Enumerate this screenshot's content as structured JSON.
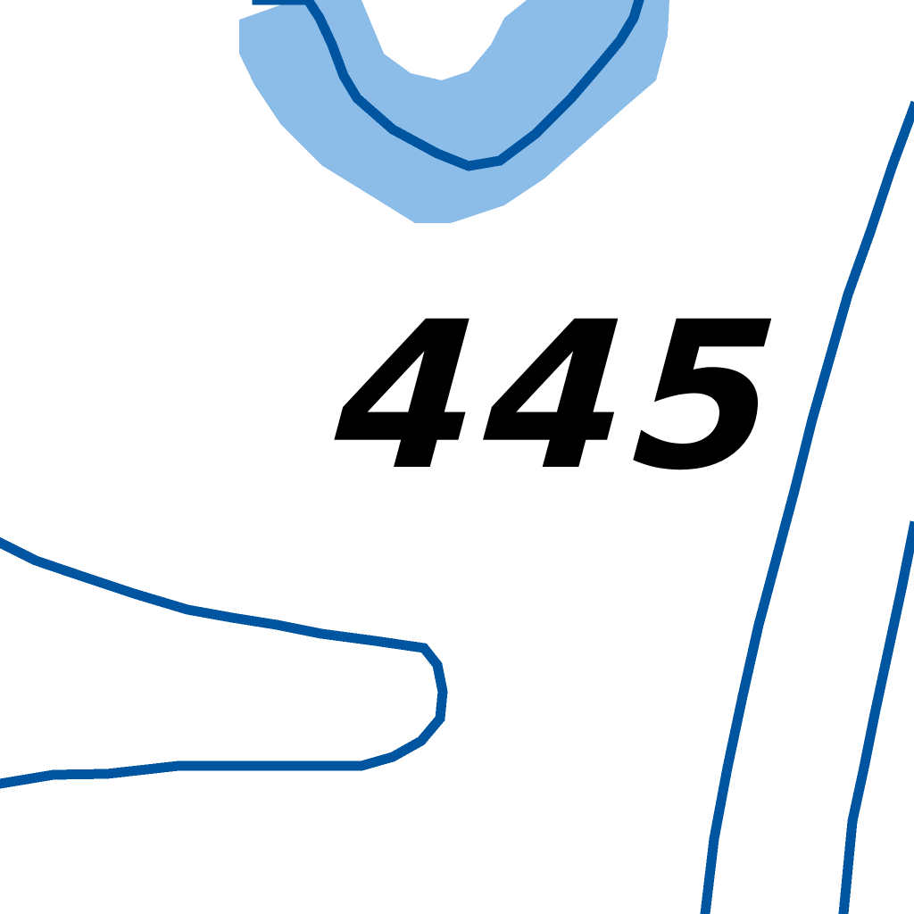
{
  "map": {
    "elevation_label": "445",
    "colors": {
      "background": "#ffffff",
      "water_line": "#0055a0",
      "water_buffer": "#8cbde8",
      "label_text": "#000000"
    }
  }
}
